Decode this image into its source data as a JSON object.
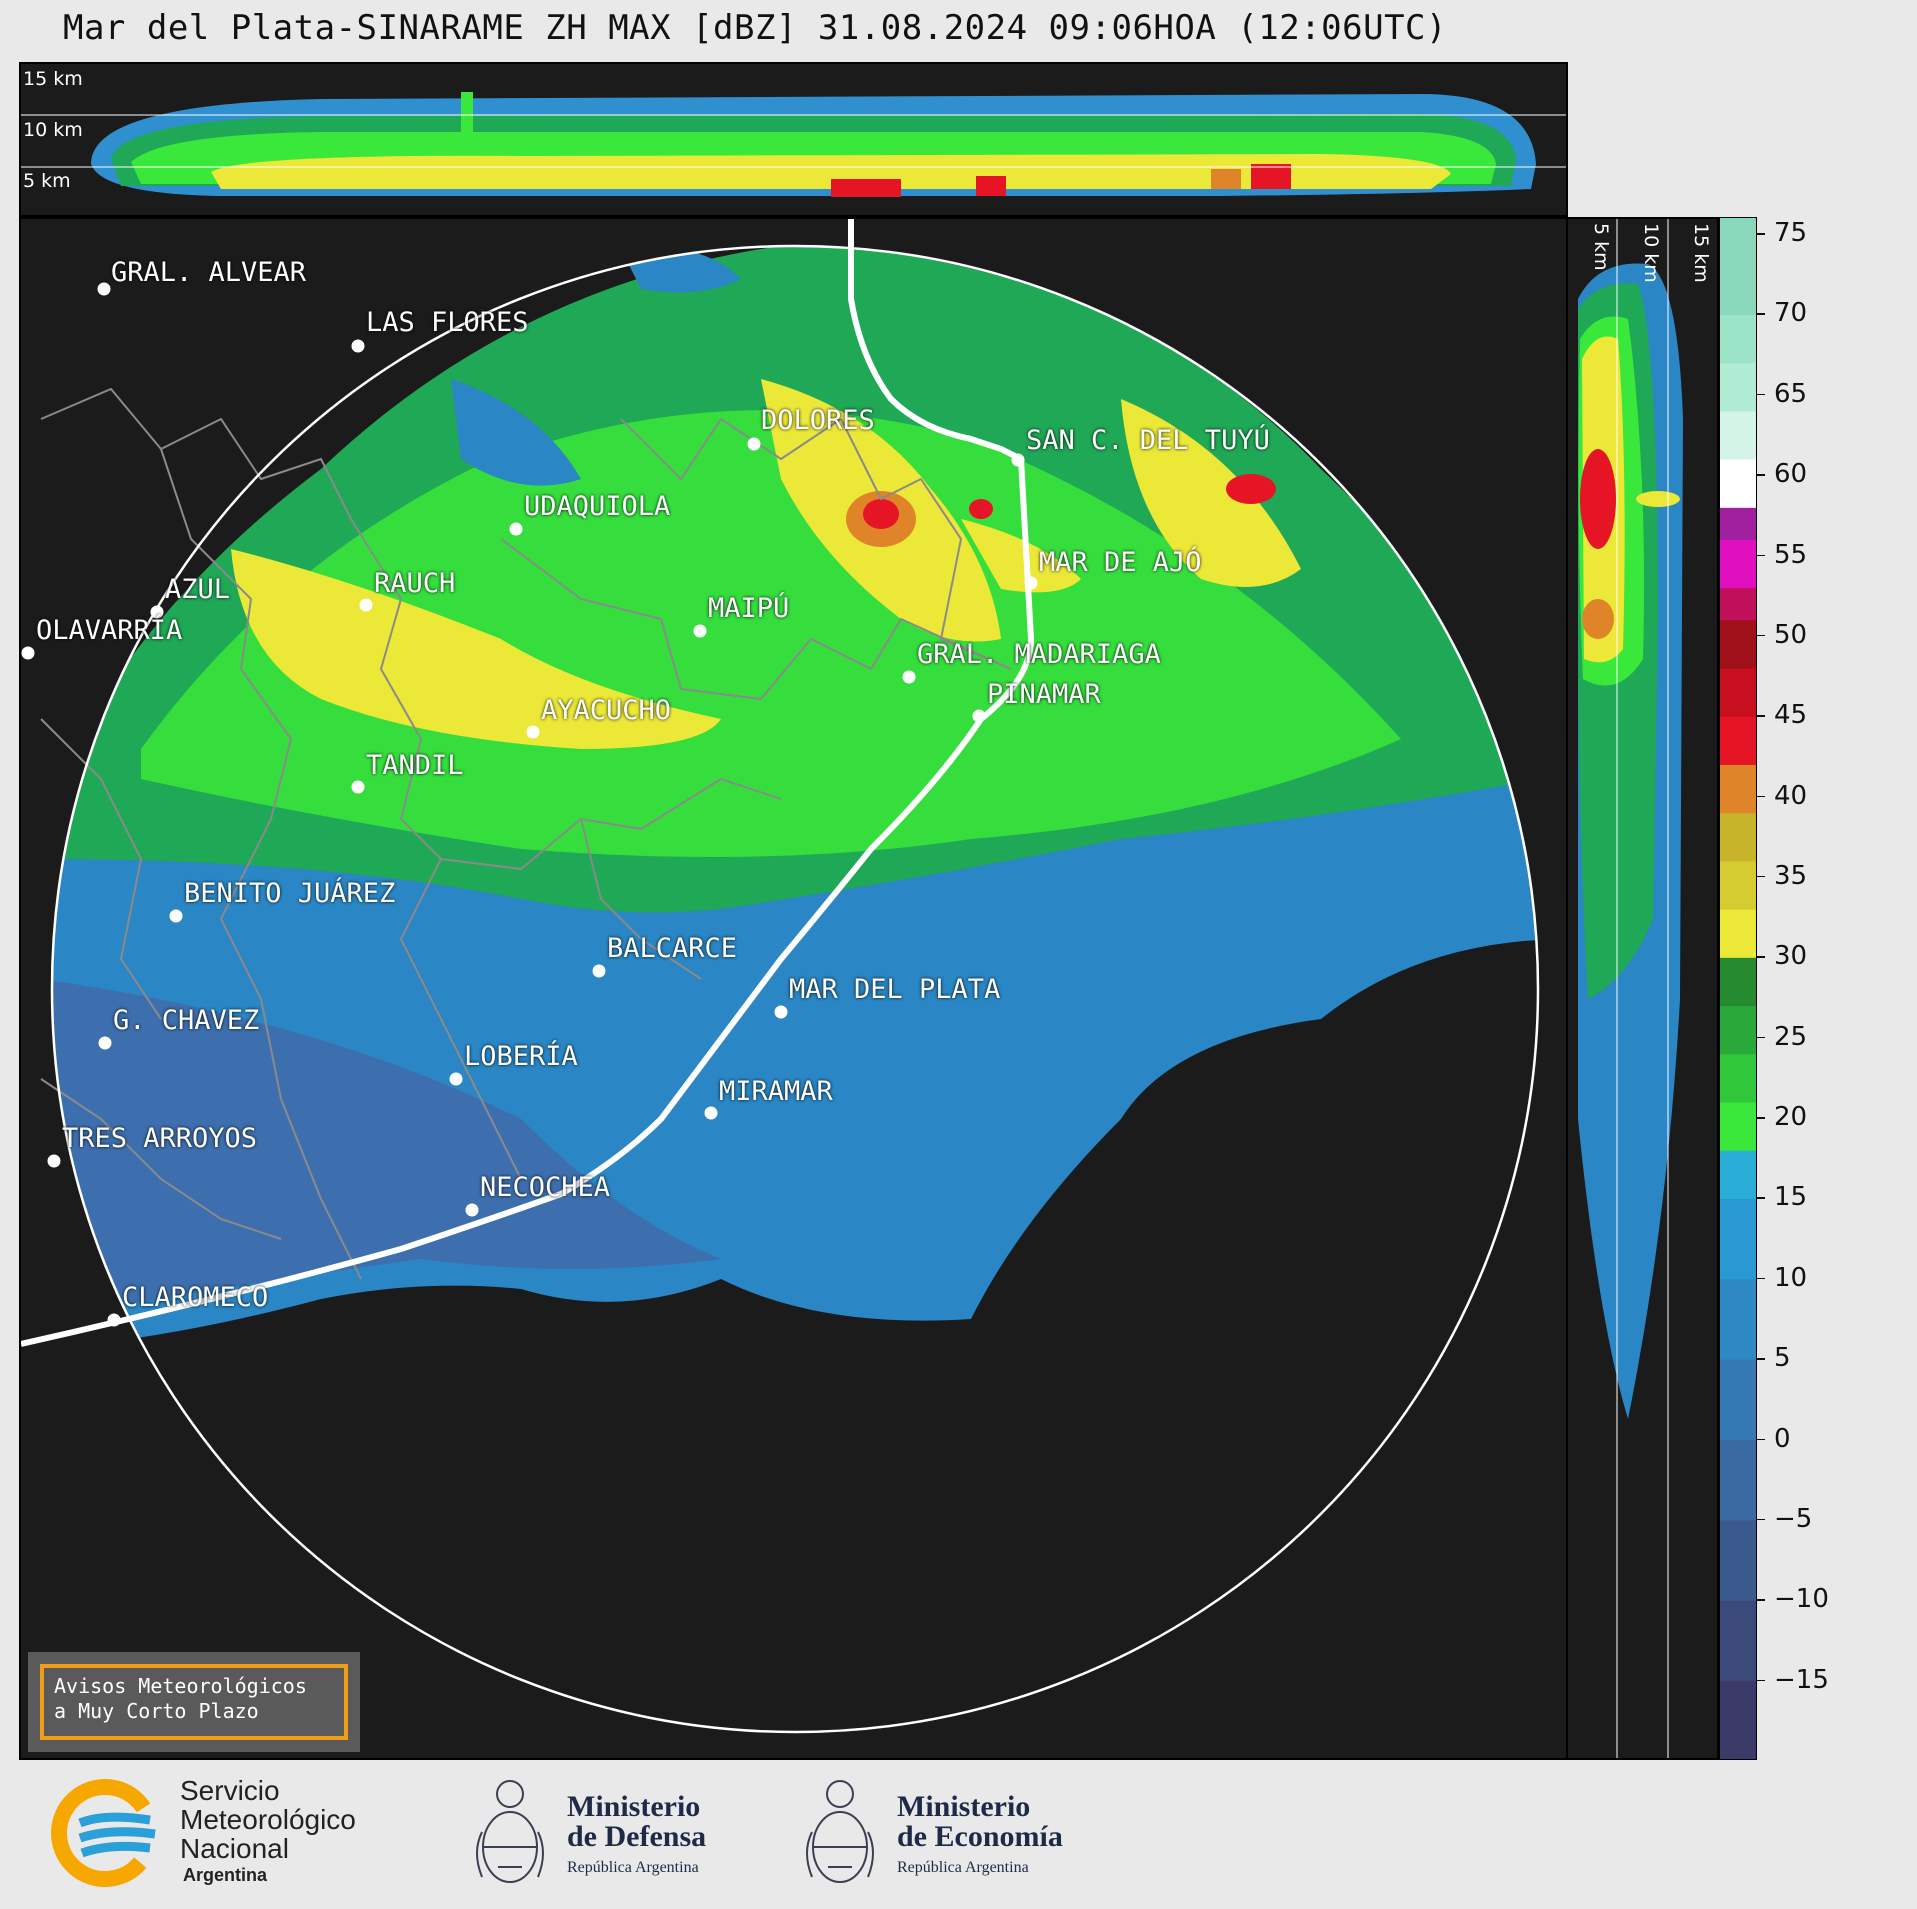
{
  "title": "Mar del Plata-SINARAME ZH MAX [dBZ] 31.08.2024 09:06HOA (12:06UTC)",
  "top_panel": {
    "km_labels": [
      "15 km",
      "10 km",
      "5 km"
    ]
  },
  "side_panel": {
    "km_labels": [
      "5 km",
      "10 km",
      "15 km"
    ]
  },
  "colorbar": {
    "tick_labels": [
      "75",
      "70",
      "65",
      "60",
      "55",
      "50",
      "45",
      "40",
      "35",
      "30",
      "25",
      "20",
      "15",
      "10",
      "5",
      "0",
      "−5",
      "−10",
      "−15"
    ],
    "tick_values": [
      75,
      70,
      65,
      60,
      55,
      50,
      45,
      40,
      35,
      30,
      25,
      20,
      15,
      10,
      5,
      0,
      -5,
      -10,
      -15
    ],
    "range": [
      -20,
      76
    ]
  },
  "cities": [
    {
      "name": "GRAL. ALVEAR"
    },
    {
      "name": "LAS FLORES"
    },
    {
      "name": "DOLORES"
    },
    {
      "name": "SAN C. DEL TUYÚ"
    },
    {
      "name": "UDAQUIOLA"
    },
    {
      "name": "MAR DE AJÓ"
    },
    {
      "name": "AZUL"
    },
    {
      "name": "RAUCH"
    },
    {
      "name": "OLAVARRÍA"
    },
    {
      "name": "MAIPÚ"
    },
    {
      "name": "GRAL. MADARIAGA"
    },
    {
      "name": "PINAMAR"
    },
    {
      "name": "AYACUCHO"
    },
    {
      "name": "TANDIL"
    },
    {
      "name": "BENITO JUÁREZ"
    },
    {
      "name": "BALCARCE"
    },
    {
      "name": "MAR DEL PLATA"
    },
    {
      "name": "G. CHAVEZ"
    },
    {
      "name": "LOBERÍA"
    },
    {
      "name": "MIRAMAR"
    },
    {
      "name": "TRES ARROYOS"
    },
    {
      "name": "NECOCHEA"
    },
    {
      "name": "CLAROMECO"
    }
  ],
  "warning_box": {
    "line1": "Avisos Meteorológicos",
    "line2": "a Muy Corto Plazo"
  },
  "logos": {
    "smn": {
      "line1": "Servicio",
      "line2": "Meteorológico",
      "line3": "Nacional",
      "line4": "Argentina"
    },
    "defensa": {
      "line1": "Ministerio",
      "line2": "de Defensa",
      "line3": "República Argentina"
    },
    "economia": {
      "line1": "Ministerio",
      "line2": "de Economía",
      "line3": "República Argentina"
    }
  },
  "colors": {
    "background": "#1b1b1b",
    "accent_orange": "#f29d1a",
    "smn_blue": "#2a9fd8",
    "smn_orange": "#f6a800"
  }
}
